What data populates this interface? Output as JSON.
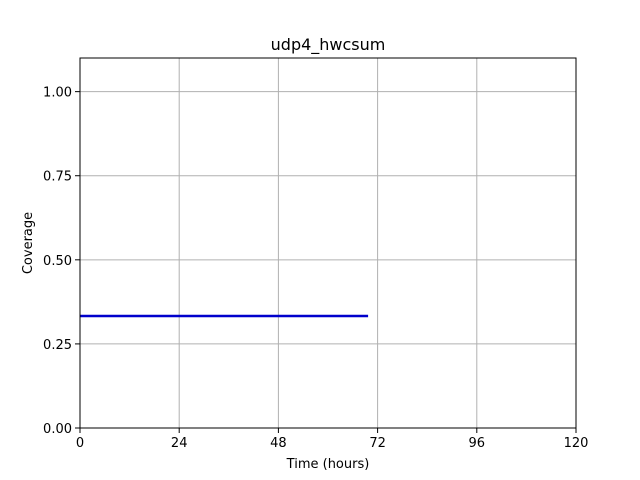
{
  "chart_data": {
    "type": "line",
    "title": "udp4_hwcsum",
    "xlabel": "Time (hours)",
    "ylabel": "Coverage",
    "xlim": [
      0,
      120
    ],
    "ylim": [
      0,
      1.1
    ],
    "xticks": [
      0,
      24,
      48,
      72,
      96,
      120
    ],
    "xtick_labels": [
      "0",
      "24",
      "48",
      "72",
      "96",
      "120"
    ],
    "yticks": [
      0,
      0.25,
      0.5,
      0.75,
      1.0
    ],
    "ytick_labels": [
      "0.00",
      "0.25",
      "0.50",
      "0.75",
      "1.00"
    ],
    "grid": true,
    "series": [
      {
        "color": "#0000cc",
        "x": [
          0,
          69.7
        ],
        "y": [
          0.333,
          0.333
        ]
      }
    ]
  }
}
